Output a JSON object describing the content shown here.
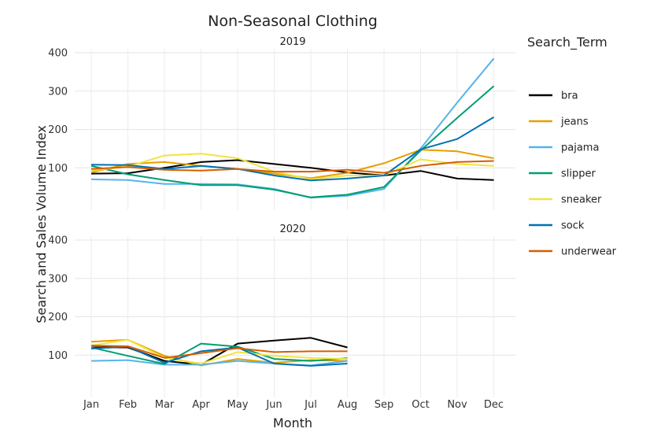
{
  "chart_data": {
    "type": "line",
    "title": "Non-Seasonal Clothing",
    "xlabel": "Month",
    "ylabel": "Search and Sales Volume Index",
    "legend_title": "Search_Term",
    "legend_position": "right",
    "grid": true,
    "categories": [
      "Jan",
      "Feb",
      "Mar",
      "Apr",
      "May",
      "Jun",
      "Jul",
      "Aug",
      "Sep",
      "Oct",
      "Nov",
      "Dec"
    ],
    "yticks": [
      100,
      200,
      300,
      400
    ],
    "ylim": [
      0,
      400
    ],
    "series_colors": {
      "bra": "#000000",
      "jeans": "#E69F00",
      "pajama": "#56B4E9",
      "slipper": "#009E73",
      "sneaker": "#F0E442",
      "sock": "#0072B2",
      "underwear": "#D55E00"
    },
    "panels": [
      {
        "label": "2019",
        "series": [
          {
            "name": "bra",
            "values": [
              85,
              86,
              100,
              115,
              120,
              110,
              100,
              88,
              80,
              92,
              72,
              68
            ]
          },
          {
            "name": "jeans",
            "values": [
              88,
              110,
              115,
              105,
              97,
              85,
              73,
              87,
              112,
              147,
              143,
              125
            ]
          },
          {
            "name": "pajama",
            "values": [
              70,
              68,
              58,
              58,
              57,
              45,
              22,
              27,
              45,
              150,
              270,
              385
            ]
          },
          {
            "name": "slipper",
            "values": [
              105,
              83,
              68,
              55,
              55,
              43,
              23,
              30,
              50,
              145,
              230,
              313
            ]
          },
          {
            "name": "sneaker",
            "values": [
              93,
              103,
              132,
              137,
              125,
              90,
              70,
              80,
              80,
              122,
              110,
              105
            ]
          },
          {
            "name": "sock",
            "values": [
              108,
              107,
              97,
              105,
              97,
              80,
              67,
              72,
              80,
              148,
              175,
              232
            ]
          },
          {
            "name": "underwear",
            "values": [
              97,
              102,
              95,
              93,
              97,
              90,
              90,
              95,
              87,
              105,
              115,
              118
            ]
          }
        ]
      },
      {
        "label": "2020",
        "series": [
          {
            "name": "bra",
            "values": [
              120,
              120,
              85,
              75,
              130,
              138,
              145,
              120
            ]
          },
          {
            "name": "jeans",
            "values": [
              135,
              140,
              98,
              73,
              90,
              80,
              87,
              85
            ]
          },
          {
            "name": "pajama",
            "values": [
              85,
              87,
              75,
              75,
              85,
              78,
              73,
              85
            ]
          },
          {
            "name": "slipper",
            "values": [
              120,
              98,
              77,
              130,
              122,
              90,
              85,
              92
            ]
          },
          {
            "name": "sneaker",
            "values": [
              125,
              140,
              93,
              78,
              108,
              98,
              93,
              90
            ]
          },
          {
            "name": "sock",
            "values": [
              117,
              122,
              80,
              110,
              120,
              78,
              72,
              78
            ]
          },
          {
            "name": "underwear",
            "values": [
              125,
              123,
              93,
              105,
              118,
              108,
              110,
              110
            ]
          }
        ]
      }
    ]
  }
}
